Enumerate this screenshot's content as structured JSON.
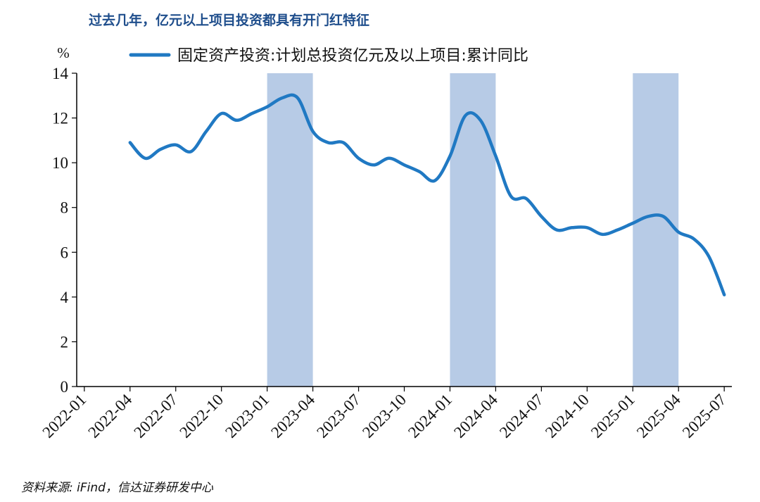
{
  "title": "过去几年，亿元以上项目投资都具有开门红特征",
  "source": "资料来源: iFind，信达证券研发中心",
  "chart_data": {
    "type": "line",
    "title": "过去几年，亿元以上项目投资都具有开门红特征",
    "ylabel": "%",
    "ylim": [
      0,
      14
    ],
    "yticks": [
      0,
      2,
      4,
      6,
      8,
      10,
      12,
      14
    ],
    "xlim": [
      "2022-01",
      "2025-07"
    ],
    "xticks": [
      "2022-01",
      "2022-04",
      "2022-07",
      "2022-10",
      "2023-01",
      "2023-04",
      "2023-07",
      "2023-10",
      "2024-01",
      "2024-04",
      "2024-07",
      "2024-10",
      "2025-01",
      "2025-04",
      "2025-07"
    ],
    "legend_position": "top",
    "grid": false,
    "shaded_periods": [
      {
        "from": "2023-01",
        "to": "2023-04"
      },
      {
        "from": "2024-01",
        "to": "2024-04"
      },
      {
        "from": "2025-01",
        "to": "2025-04"
      }
    ],
    "series": [
      {
        "name": "固定资产投资:计划总投资亿元及以上项目:累计同比",
        "color": "#2079c3",
        "points": [
          [
            "2022-04",
            10.9
          ],
          [
            "2022-05",
            10.2
          ],
          [
            "2022-06",
            10.6
          ],
          [
            "2022-07",
            10.8
          ],
          [
            "2022-08",
            10.5
          ],
          [
            "2022-09",
            11.4
          ],
          [
            "2022-10",
            12.2
          ],
          [
            "2022-11",
            11.9
          ],
          [
            "2022-12",
            12.2
          ],
          [
            "2023-01",
            12.5
          ],
          [
            "2023-02",
            12.9
          ],
          [
            "2023-03",
            12.9
          ],
          [
            "2023-04",
            11.4
          ],
          [
            "2023-05",
            10.9
          ],
          [
            "2023-06",
            10.9
          ],
          [
            "2023-07",
            10.2
          ],
          [
            "2023-08",
            9.9
          ],
          [
            "2023-09",
            10.2
          ],
          [
            "2023-10",
            9.9
          ],
          [
            "2023-11",
            9.6
          ],
          [
            "2023-12",
            9.2
          ],
          [
            "2024-01",
            10.3
          ],
          [
            "2024-02",
            12.1
          ],
          [
            "2024-03",
            11.9
          ],
          [
            "2024-04",
            10.3
          ],
          [
            "2024-05",
            8.5
          ],
          [
            "2024-06",
            8.4
          ],
          [
            "2024-07",
            7.6
          ],
          [
            "2024-08",
            7.0
          ],
          [
            "2024-09",
            7.1
          ],
          [
            "2024-10",
            7.1
          ],
          [
            "2024-11",
            6.8
          ],
          [
            "2024-12",
            7.0
          ],
          [
            "2025-01",
            7.3
          ],
          [
            "2025-02",
            7.6
          ],
          [
            "2025-03",
            7.6
          ],
          [
            "2025-04",
            6.9
          ],
          [
            "2025-05",
            6.6
          ],
          [
            "2025-06",
            5.8
          ],
          [
            "2025-07",
            4.1
          ]
        ]
      }
    ]
  }
}
